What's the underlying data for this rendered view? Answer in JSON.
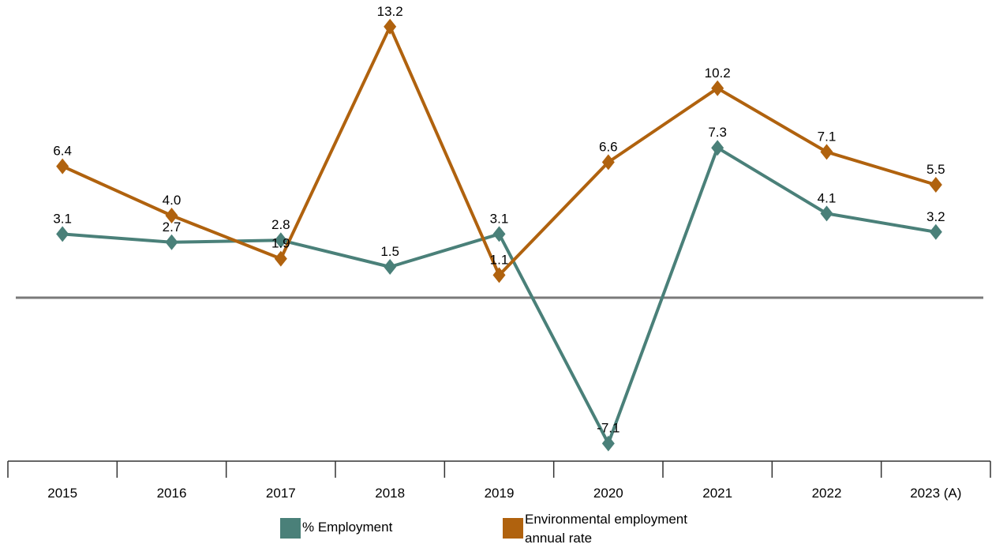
{
  "chart_data": {
    "type": "line",
    "categories": [
      "2015",
      "2016",
      "2017",
      "2018",
      "2019",
      "2020",
      "2021",
      "2022",
      "2023 (A)"
    ],
    "series": [
      {
        "name": "% Employment",
        "color": "#4a8079",
        "values": [
          3.1,
          2.7,
          2.8,
          1.5,
          3.1,
          -7.1,
          7.3,
          4.1,
          3.2
        ],
        "labels": [
          "3.1",
          "2.7",
          "2.8",
          "1.5",
          "3.1",
          "-7.1",
          "7.3",
          "4.1",
          "3.2"
        ]
      },
      {
        "name": "Environmental employment annual rate",
        "color": "#b0620e",
        "values": [
          6.4,
          4.0,
          1.9,
          13.2,
          1.1,
          6.6,
          10.2,
          7.1,
          5.5
        ],
        "labels": [
          "6.4",
          "4.0",
          "1.9",
          "13.2",
          "1.1",
          "6.6",
          "10.2",
          "7.1",
          "5.5"
        ]
      }
    ],
    "marker": "diamond",
    "zero_line": true,
    "grid": false,
    "legend_position": "bottom",
    "title": "",
    "xlabel": "",
    "ylabel": ""
  },
  "legend": {
    "items": [
      {
        "label": "% Employment",
        "color": "#4a8079"
      },
      {
        "label_line1": "Environmental employment",
        "label_line2": "annual rate",
        "color": "#b0620e"
      }
    ]
  }
}
